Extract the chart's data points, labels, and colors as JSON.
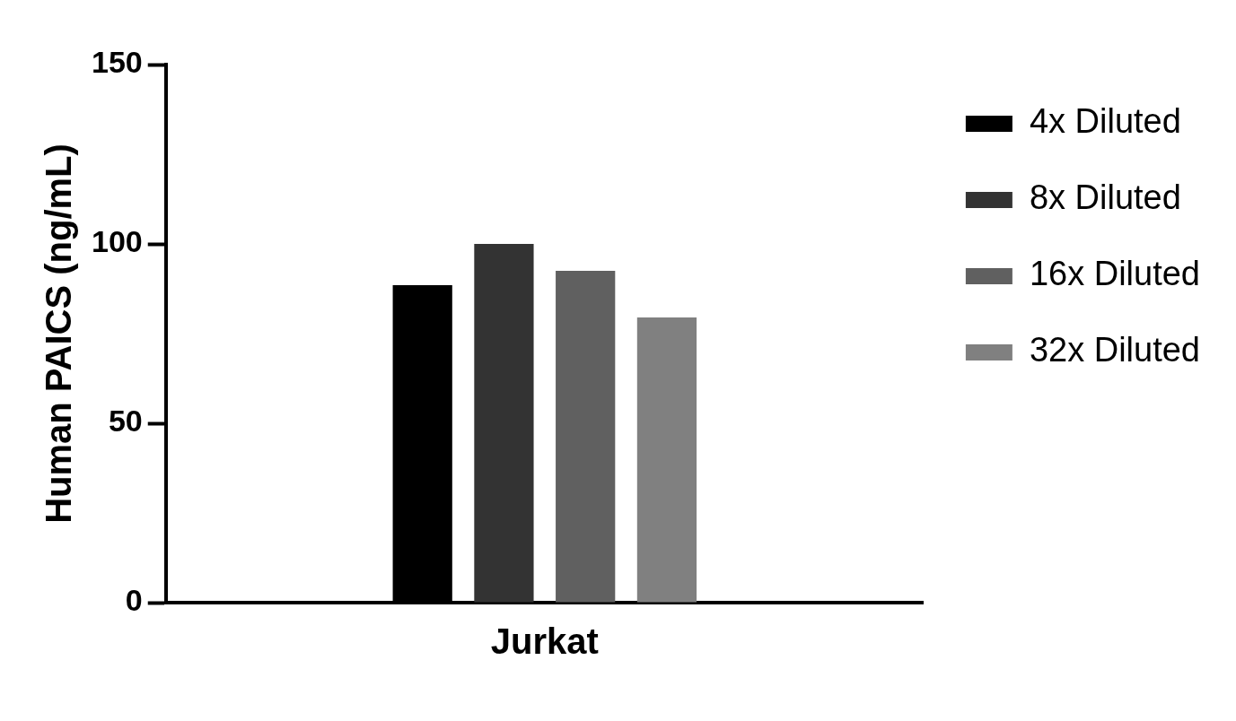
{
  "chart_data": {
    "type": "bar",
    "ylabel": "Human PAICS (ng/mL)",
    "categories": [
      "Jurkat"
    ],
    "series": [
      {
        "name": "4x Diluted",
        "color": "#000000",
        "values": [
          88.5
        ]
      },
      {
        "name": "8x Diluted",
        "color": "#333333",
        "values": [
          100
        ]
      },
      {
        "name": "16x Diluted",
        "color": "#606060",
        "values": [
          92.5
        ]
      },
      {
        "name": "32x Diluted",
        "color": "#808080",
        "values": [
          79.5
        ]
      }
    ],
    "ylim": [
      0,
      150
    ],
    "yticks": [
      0,
      50,
      100,
      150
    ],
    "grid": false,
    "legend": "top right"
  }
}
